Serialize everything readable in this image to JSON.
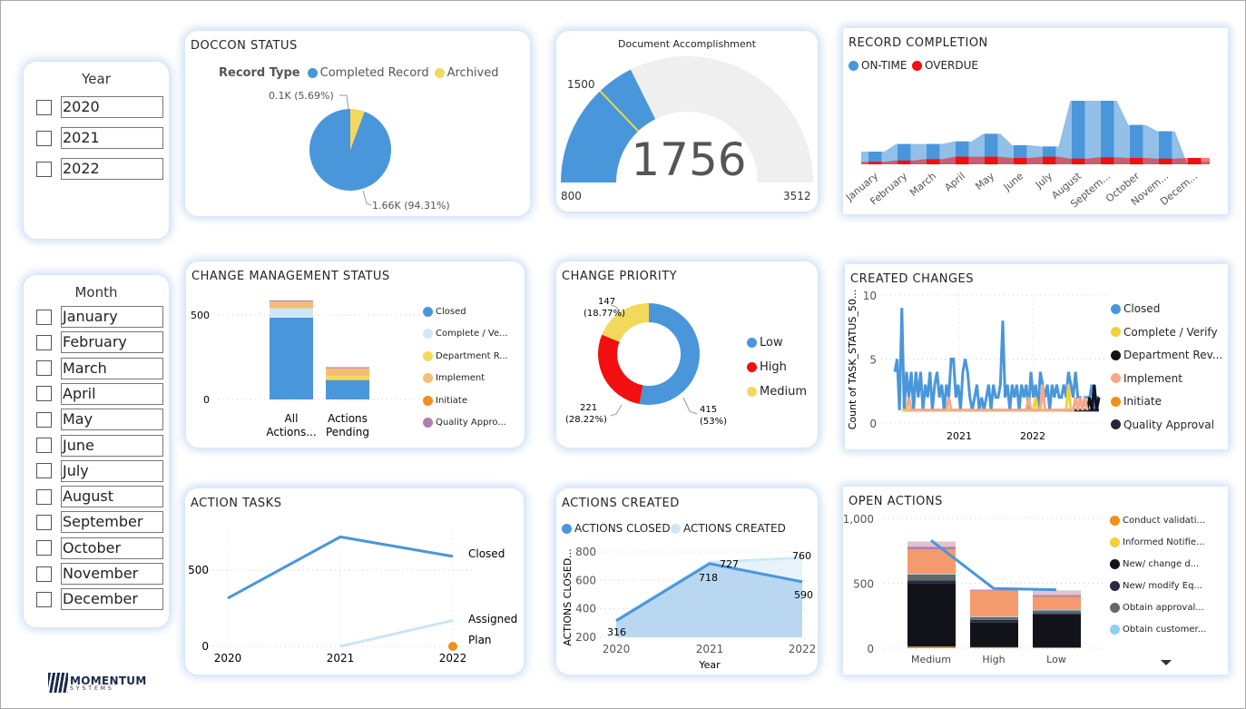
{
  "slicers": {
    "year": {
      "title": "Year",
      "options": [
        "2020",
        "2021",
        "2022"
      ]
    },
    "month": {
      "title": "Month",
      "options": [
        "January",
        "February",
        "March",
        "April",
        "May",
        "June",
        "July",
        "August",
        "September",
        "October",
        "November",
        "December"
      ]
    }
  },
  "logo": {
    "line1": "MOMENTUM",
    "line2": "SYSTEMS"
  },
  "colors": {
    "blue": "#4a96db",
    "lightblue": "#cfe8f5",
    "yellow": "#f2d95b",
    "red": "#f20f0f",
    "orange": "#f0901a",
    "salmon": "#f59a6c",
    "purple": "#b07fae",
    "black": "#12121a",
    "gauge_bg": "#efefef"
  },
  "doccon": {
    "title": "DOCCON STATUS",
    "legend_title": "Record Type",
    "chart_data": {
      "type": "pie",
      "slices": [
        {
          "name": "Completed Record",
          "value": 1660,
          "label": "1.66K (94.31%)"
        },
        {
          "name": "Archived",
          "value": 100,
          "label": "0.1K (5.69%)"
        }
      ]
    }
  },
  "gauge": {
    "title": "Document Accomplishment",
    "chart_data": {
      "type": "gauge",
      "value": 1756,
      "value_label": "1756",
      "min": 800,
      "max": 3512,
      "target": 1500,
      "min_label": "800",
      "max_label": "3512",
      "target_label": "1500"
    }
  },
  "record_completion": {
    "title": "RECORD COMPLETION",
    "chart_data": {
      "type": "area",
      "categories": [
        "January",
        "February",
        "March",
        "April",
        "May",
        "June",
        "July",
        "August",
        "Septem...",
        "October",
        "Novem...",
        "Decem..."
      ],
      "series": [
        {
          "name": "ON-TIME",
          "values": [
            1.0,
            1.6,
            1.6,
            1.8,
            2.4,
            1.5,
            1.4,
            5.0,
            5.0,
            3.1,
            2.6,
            0.2
          ]
        },
        {
          "name": "OVERDUE",
          "values": [
            0.2,
            0.3,
            0.4,
            0.6,
            0.6,
            0.5,
            0.6,
            0.45,
            0.55,
            0.5,
            0.45,
            0.5
          ]
        }
      ]
    }
  },
  "change_mgmt": {
    "title": "CHANGE MANAGEMENT STATUS",
    "chart_data": {
      "type": "bar",
      "stacked": true,
      "categories": [
        "All Actions...",
        "Actions Pending"
      ],
      "category_lines": [
        [
          "All",
          "Actions..."
        ],
        [
          "Actions",
          "Pending"
        ]
      ],
      "yticks": [
        0,
        500
      ],
      "ylim": [
        0,
        650
      ],
      "series": [
        {
          "name": "Closed",
          "values": [
            485,
            115
          ]
        },
        {
          "name": "Complete / Ve...",
          "values": [
            55,
            0
          ]
        },
        {
          "name": "Department R...",
          "values": [
            0,
            25
          ]
        },
        {
          "name": "Implement",
          "values": [
            40,
            45
          ]
        },
        {
          "name": "Initiate",
          "values": [
            0,
            0
          ]
        },
        {
          "name": "Quality Appro...",
          "values": [
            6,
            6
          ]
        }
      ]
    }
  },
  "change_priority": {
    "title": "CHANGE PRIORITY",
    "chart_data": {
      "type": "pie",
      "donut": true,
      "slices": [
        {
          "name": "Low",
          "value": 415,
          "label": [
            "415",
            "(53%)"
          ]
        },
        {
          "name": "High",
          "value": 221,
          "label": [
            "221",
            "(28.22%)"
          ]
        },
        {
          "name": "Medium",
          "value": 147,
          "label": [
            "147",
            "(18.77%)"
          ]
        }
      ]
    }
  },
  "created_changes": {
    "title": "CREATED CHANGES",
    "chart_data": {
      "type": "line",
      "ylabel": "Count of TASK_STATUS_50...",
      "yticks": [
        0,
        5,
        10
      ],
      "ylim": [
        0,
        10
      ],
      "xticks": [
        "2021",
        "2022"
      ],
      "series": [
        {
          "name": "Closed",
          "values": [
            4,
            5,
            1,
            9,
            1,
            4,
            2,
            4,
            1,
            4,
            2,
            4,
            1,
            3,
            2,
            4,
            1,
            3,
            4,
            2,
            3,
            1,
            3,
            2,
            5,
            5,
            2,
            3,
            1,
            4,
            5,
            4,
            2,
            1,
            2,
            3,
            1,
            2,
            1,
            2,
            3,
            1,
            3,
            2,
            2,
            3,
            8,
            2,
            3,
            1,
            3,
            2,
            3,
            1,
            3,
            2,
            3,
            1,
            4,
            2,
            3,
            1,
            4,
            3,
            2,
            3,
            1,
            3,
            2,
            3,
            2,
            2,
            3,
            2,
            4,
            3,
            2,
            4,
            2,
            2,
            1,
            2,
            2,
            2,
            3,
            1,
            2,
            2
          ]
        },
        {
          "name": "Complete / Verify",
          "points": [
            [
              3,
              1
            ],
            [
              4,
              1
            ],
            [
              59,
              1
            ],
            [
              60,
              2
            ],
            [
              61,
              1
            ],
            [
              73,
              1
            ],
            [
              74,
              3
            ],
            [
              75,
              1
            ]
          ]
        },
        {
          "name": "Department Rev...",
          "points": [
            [
              82,
              1
            ],
            [
              83,
              2
            ],
            [
              84,
              1
            ],
            [
              85,
              3
            ],
            [
              86,
              1
            ],
            [
              87,
              2
            ]
          ]
        },
        {
          "name": "Implement",
          "points": [
            [
              5,
              1
            ],
            [
              6,
              2
            ],
            [
              7,
              1
            ],
            [
              22,
              1
            ],
            [
              23,
              2
            ],
            [
              24,
              1
            ],
            [
              56,
              1
            ],
            [
              57,
              2
            ],
            [
              58,
              1
            ],
            [
              62,
              1
            ],
            [
              63,
              3
            ],
            [
              64,
              1
            ],
            [
              76,
              1
            ],
            [
              77,
              2
            ],
            [
              78,
              1
            ],
            [
              79,
              2
            ],
            [
              80,
              1
            ],
            [
              81,
              2
            ],
            [
              82,
              1
            ]
          ]
        },
        {
          "name": "Initiate",
          "points": [
            [
              2,
              1
            ],
            [
              87,
              1
            ]
          ]
        },
        {
          "name": "Quality Approval",
          "points": [
            [
              4,
              1
            ],
            [
              87,
              1
            ]
          ]
        }
      ]
    }
  },
  "action_tasks": {
    "title": "ACTION TASKS",
    "chart_data": {
      "type": "line",
      "x": [
        "2020",
        "2021",
        "2022"
      ],
      "yticks": [
        0,
        500
      ],
      "ylim": [
        0,
        850
      ],
      "series": [
        {
          "name": "Closed",
          "values": [
            316,
            718,
            590
          ]
        },
        {
          "name": "Assigned",
          "values": [
            null,
            0,
            170
          ]
        },
        {
          "name": "Plan",
          "values": [
            null,
            null,
            0
          ]
        }
      ]
    }
  },
  "actions_created": {
    "title": "ACTIONS CREATED",
    "chart_data": {
      "type": "area",
      "x": [
        "2020",
        "2021",
        "2022"
      ],
      "xlabel": "Year",
      "ylabel": "ACTIONS CLOSED...",
      "yticks": [
        200,
        400,
        600,
        800
      ],
      "ylim": [
        200,
        800
      ],
      "series": [
        {
          "name": "ACTIONS CLOSED",
          "values": [
            316,
            718,
            590
          ],
          "labels": [
            "316",
            "718",
            "590"
          ]
        },
        {
          "name": "ACTIONS CREATED",
          "values": [
            320,
            727,
            760
          ],
          "labels": [
            "",
            "727",
            "760"
          ]
        }
      ]
    }
  },
  "open_actions": {
    "title": "OPEN ACTIONS",
    "chart_data": {
      "type": "bar",
      "stacked": true,
      "categories": [
        "Medium",
        "High",
        "Low"
      ],
      "yticks": [
        "0",
        "500",
        "1,000"
      ],
      "ylim": [
        0,
        1000
      ],
      "line": [
        830,
        460,
        450
      ],
      "series": [
        {
          "name": "Conduct validati...",
          "values": [
            10,
            6,
            3
          ]
        },
        {
          "name": "Informed Notifie...",
          "values": [
            2,
            2,
            2
          ]
        },
        {
          "name": "New/ change d...",
          "values": [
            490,
            190,
            255
          ]
        },
        {
          "name": "New/ modify Eq...",
          "values": [
            20,
            20,
            10
          ]
        },
        {
          "name": "Obtain approval...",
          "values": [
            45,
            20,
            20
          ]
        },
        {
          "name": "Obtain customer...",
          "values": [
            5,
            5,
            5
          ]
        },
        {
          "name": "",
          "values": [
            190,
            200,
            100
          ],
          "color": "#f59a6c"
        },
        {
          "name": "",
          "values": [
            20,
            6,
            15
          ],
          "color": "#b07fae"
        },
        {
          "name": "",
          "values": [
            40,
            6,
            35
          ],
          "color": "#e0c4c8"
        }
      ]
    }
  }
}
